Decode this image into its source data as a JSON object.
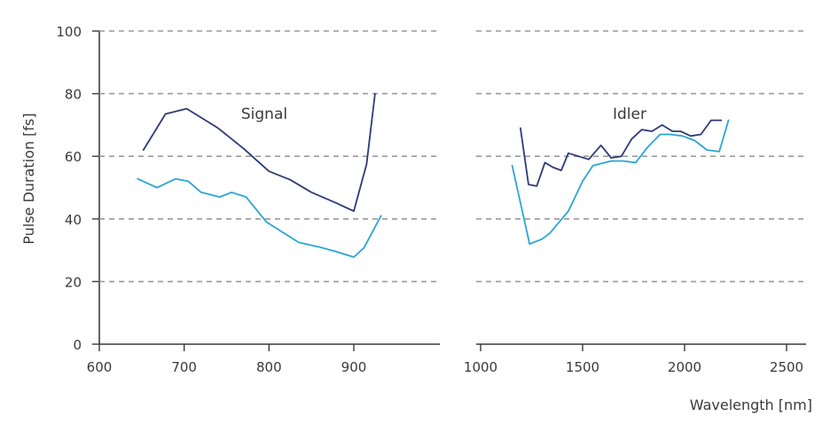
{
  "chart_data": {
    "type": "line",
    "ylabel": "Pulse Duration [fs]",
    "xlabel": "Wavelength [nm]",
    "ylim": [
      0,
      100
    ],
    "yticks": [
      0,
      20,
      40,
      60,
      80,
      100
    ],
    "grid": "horizontal dashed",
    "colors": {
      "dark": "#2e3a78",
      "light": "#2aa6d4",
      "grid": "#9a9a9a",
      "axis": "#3a3a3a"
    },
    "panels": [
      {
        "annotation": "Signal",
        "xlim": [
          600,
          1000
        ],
        "xticks": [
          600,
          700,
          800,
          900
        ],
        "series": [
          {
            "color": "#2e3a78",
            "x": [
              652,
              678,
              703,
              740,
              770,
              800,
              825,
              850,
              880,
              900,
              915,
              925
            ],
            "y": [
              62,
              73.5,
              75.2,
              69,
              62.5,
              55.2,
              52.5,
              48.5,
              45,
              42.5,
              57.5,
              80
            ]
          },
          {
            "color": "#2aa6d4",
            "x": [
              645,
              668,
              690,
              705,
              720,
              742,
              756,
              773,
              797,
              835,
              860,
              880,
              900,
              912,
              932
            ],
            "y": [
              52.8,
              50,
              52.8,
              52,
              48.5,
              47,
              48.5,
              47,
              39,
              32.5,
              31,
              29.5,
              27.8,
              30.8,
              41
            ]
          }
        ]
      },
      {
        "annotation": "Idler",
        "xlim": [
          1000,
          2600
        ],
        "xticks": [
          1000,
          1500,
          2000,
          2500
        ],
        "series": [
          {
            "color": "#2e3a78",
            "x": [
              1195,
              1235,
              1275,
              1315,
              1355,
              1395,
              1430,
              1480,
              1530,
              1590,
              1640,
              1690,
              1740,
              1790,
              1840,
              1890,
              1940,
              1980,
              2030,
              2080,
              2130,
              2180
            ],
            "y": [
              69,
              51,
              50.5,
              58,
              56.5,
              55.5,
              61,
              60,
              59,
              63.5,
              59.5,
              60,
              65.5,
              68.5,
              68,
              70,
              68,
              68,
              66.5,
              67,
              71.5,
              71.5
            ]
          },
          {
            "color": "#2aa6d4",
            "x": [
              1155,
              1240,
              1300,
              1340,
              1430,
              1500,
              1550,
              1640,
              1700,
              1760,
              1820,
              1880,
              1930,
              1990,
              2050,
              2110,
              2170,
              2215
            ],
            "y": [
              57,
              32,
              33.5,
              35.5,
              42.5,
              52,
              57,
              58.5,
              58.5,
              58,
              63,
              67,
              67,
              66.5,
              65,
              62,
              61.5,
              71.5
            ]
          }
        ]
      }
    ]
  }
}
